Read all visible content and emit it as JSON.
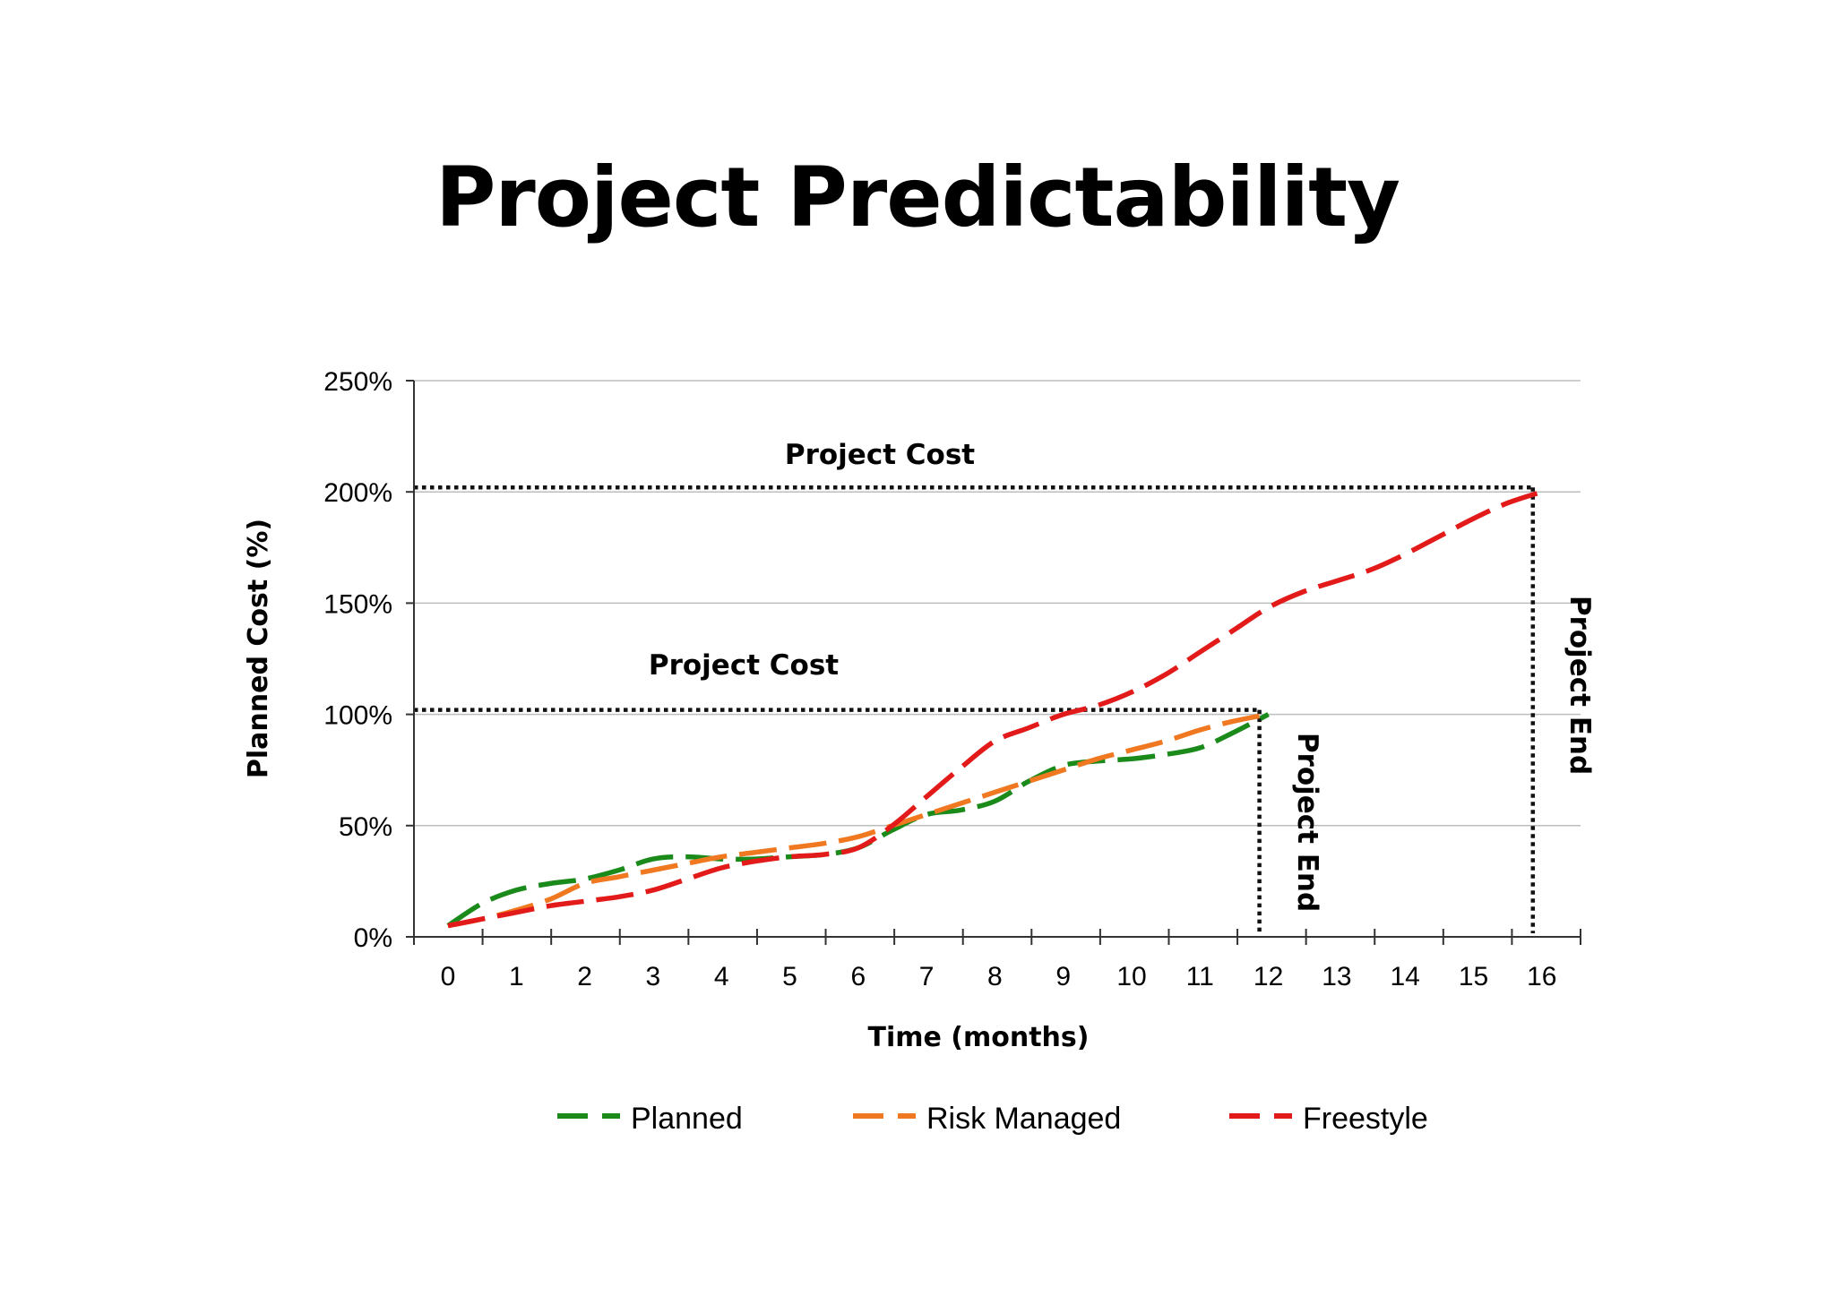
{
  "page": {
    "title": "Project Predictability"
  },
  "chart_data": {
    "type": "line",
    "xlabel": "Time (months)",
    "ylabel": "Planned Cost (%)",
    "xlim": [
      0,
      16
    ],
    "ylim": [
      0,
      250
    ],
    "x_ticks": [
      "0",
      "1",
      "2",
      "3",
      "4",
      "5",
      "6",
      "7",
      "8",
      "9",
      "10",
      "11",
      "12",
      "13",
      "14",
      "15",
      "16"
    ],
    "y_ticks": [
      "0%",
      "50%",
      "100%",
      "150%",
      "200%",
      "250%"
    ],
    "grid": true,
    "legend_position": "bottom",
    "series": [
      {
        "name": "Planned",
        "color": "#1a8a1a",
        "x": [
          0,
          0.5,
          1,
          1.5,
          2,
          2.5,
          3,
          3.5,
          4,
          4.5,
          5,
          5.5,
          6,
          6.5,
          7,
          7.5,
          8,
          8.5,
          9,
          9.5,
          10,
          10.5,
          11,
          11.5,
          12
        ],
        "y": [
          5,
          15,
          21,
          24,
          26,
          30,
          35,
          36,
          35,
          35,
          36,
          37,
          40,
          48,
          55,
          57,
          61,
          70,
          77,
          79,
          80,
          82,
          85,
          92,
          100
        ]
      },
      {
        "name": "Risk Managed",
        "color": "#f07820",
        "x": [
          0,
          0.5,
          1,
          1.5,
          2,
          2.5,
          3,
          3.5,
          4,
          4.5,
          5,
          5.5,
          6,
          6.5,
          7,
          7.5,
          8,
          8.5,
          9,
          9.5,
          10,
          10.5,
          11,
          11.5,
          12
        ],
        "y": [
          5,
          8,
          12,
          17,
          24,
          27,
          30,
          33,
          36,
          38,
          40,
          42,
          45,
          50,
          55,
          60,
          65,
          70,
          75,
          80,
          84,
          88,
          93,
          97,
          100
        ]
      },
      {
        "name": "Freestyle",
        "color": "#e31a1a",
        "x": [
          0,
          0.5,
          1,
          1.5,
          2,
          2.5,
          3,
          3.5,
          4,
          4.5,
          5,
          5.5,
          6,
          6.5,
          7,
          7.5,
          8,
          8.5,
          9,
          9.5,
          10,
          10.5,
          11,
          11.5,
          12,
          12.5,
          13,
          13.5,
          14,
          14.5,
          15,
          15.5,
          16
        ],
        "y": [
          5,
          8,
          11,
          14,
          16,
          18,
          21,
          26,
          31,
          34,
          36,
          37,
          40,
          50,
          63,
          76,
          88,
          94,
          100,
          104,
          110,
          118,
          128,
          138,
          148,
          155,
          160,
          165,
          172,
          180,
          188,
          195,
          200
        ]
      }
    ],
    "annotations": [
      {
        "text": "Project Cost",
        "type": "horizontal-dotted",
        "y": 202,
        "x_end": 16
      },
      {
        "text": "Project Cost",
        "type": "horizontal-dotted",
        "y": 102,
        "x_end": 12
      },
      {
        "text": "Project End",
        "type": "vertical-dotted",
        "x": 12,
        "y_end": 102
      },
      {
        "text": "Project End",
        "type": "vertical-dotted",
        "x": 16,
        "y_end": 202
      }
    ]
  }
}
